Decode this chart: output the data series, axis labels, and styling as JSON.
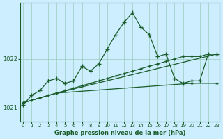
{
  "background_color": "#cceeff",
  "plot_bg_color": "#cceeff",
  "grid_color": "#99ccbb",
  "line_color": "#1a5c2a",
  "xlim": [
    -0.3,
    23.3
  ],
  "ylim": [
    1020.72,
    1023.15
  ],
  "yticks": [
    1021,
    1022
  ],
  "xticks": [
    0,
    1,
    2,
    3,
    4,
    5,
    6,
    7,
    8,
    9,
    10,
    11,
    12,
    13,
    14,
    15,
    16,
    17,
    18,
    19,
    20,
    21,
    22,
    23
  ],
  "xlabel": "Graphe pression niveau de la mer (hPa)",
  "main_x": [
    0,
    1,
    2,
    3,
    4,
    5,
    6,
    7,
    8,
    9,
    10,
    11,
    12,
    13,
    14,
    15,
    16,
    17,
    18,
    19,
    20,
    21,
    22,
    23
  ],
  "main_y": [
    1021.05,
    1021.25,
    1021.35,
    1021.55,
    1021.6,
    1021.5,
    1021.55,
    1021.85,
    1021.75,
    1021.9,
    1022.2,
    1022.5,
    1022.75,
    1022.95,
    1022.65,
    1022.5,
    1022.05,
    1022.1,
    1021.6,
    1021.5,
    1021.55,
    1021.55,
    1022.1,
    1022.1
  ],
  "line2_x": [
    0,
    1,
    2,
    3,
    4,
    5,
    6,
    7,
    8,
    9,
    10,
    11,
    12,
    13,
    14,
    15,
    16,
    17,
    18,
    19,
    20,
    21,
    22,
    23
  ],
  "line2_y": [
    1021.1,
    1021.15,
    1021.2,
    1021.25,
    1021.3,
    1021.35,
    1021.4,
    1021.45,
    1021.5,
    1021.55,
    1021.6,
    1021.65,
    1021.7,
    1021.75,
    1021.8,
    1021.85,
    1021.9,
    1021.95,
    1022.0,
    1022.05,
    1022.05,
    1022.05,
    1022.1,
    1022.1
  ],
  "line3_x": [
    0,
    4,
    23
  ],
  "line3_y": [
    1021.1,
    1021.3,
    1022.1
  ],
  "line4_x": [
    0,
    4,
    20,
    23
  ],
  "line4_y": [
    1021.1,
    1021.3,
    1021.5,
    1021.5
  ],
  "marker_size": 2.5,
  "line_width": 0.9
}
